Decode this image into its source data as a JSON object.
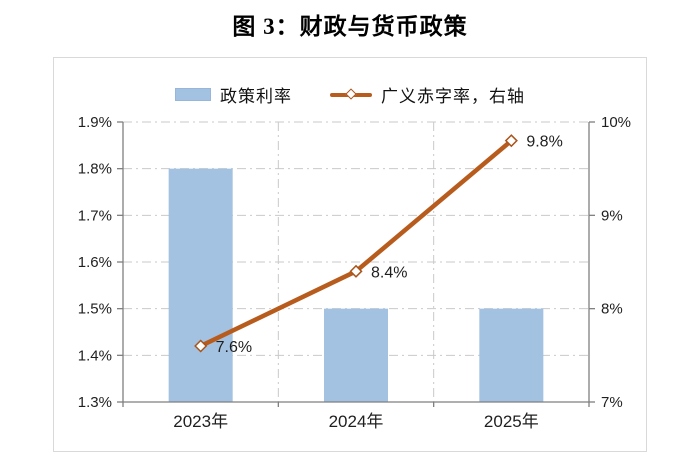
{
  "title": "图 3：财政与货币政策",
  "legend": [
    {
      "label": "政策利率",
      "type": "bar",
      "color": "#a3c1e0"
    },
    {
      "label": "广义赤字率，右轴",
      "type": "line",
      "color": "#b85c1e"
    }
  ],
  "chart_data": {
    "type": "bar+line combo",
    "categories": [
      "2023年",
      "2024年",
      "2025年"
    ],
    "series": [
      {
        "name": "政策利率",
        "type": "bar",
        "axis": "left",
        "values": [
          1.8,
          1.5,
          1.5
        ],
        "color": "#a3c1e0"
      },
      {
        "name": "广义赤字率，右轴",
        "type": "line",
        "axis": "right",
        "values": [
          7.6,
          8.4,
          9.8
        ],
        "point_labels": [
          "7.6%",
          "8.4%",
          "9.8%"
        ],
        "color": "#b85c1e",
        "marker": "open-diamond",
        "marker_fill": "#ffffff",
        "marker_stroke": "#a8541a"
      }
    ],
    "left_axis": {
      "min": 1.3,
      "max": 1.9,
      "ticks": [
        {
          "v": 1.9,
          "label": "1.9%"
        },
        {
          "v": 1.8,
          "label": "1.8%"
        },
        {
          "v": 1.7,
          "label": "1.7%"
        },
        {
          "v": 1.6,
          "label": "1.6%"
        },
        {
          "v": 1.5,
          "label": "1.5%"
        },
        {
          "v": 1.4,
          "label": "1.4%"
        },
        {
          "v": 1.3,
          "label": "1.3%"
        }
      ]
    },
    "right_axis": {
      "min": 7,
      "max": 10,
      "ticks": [
        {
          "v": 10,
          "label": "10%"
        },
        {
          "v": 9,
          "label": "9%"
        },
        {
          "v": 8,
          "label": "8%"
        },
        {
          "v": 7,
          "label": "7%"
        }
      ]
    },
    "grid": "dash-dot horizontal and vertical category separators",
    "legend_position": "top-center",
    "colors": {
      "grid": "#c9c9c9",
      "axis": "#7f7f7f",
      "tick_text": "#1f1f1f",
      "card_border": "#d9d9d9"
    }
  }
}
